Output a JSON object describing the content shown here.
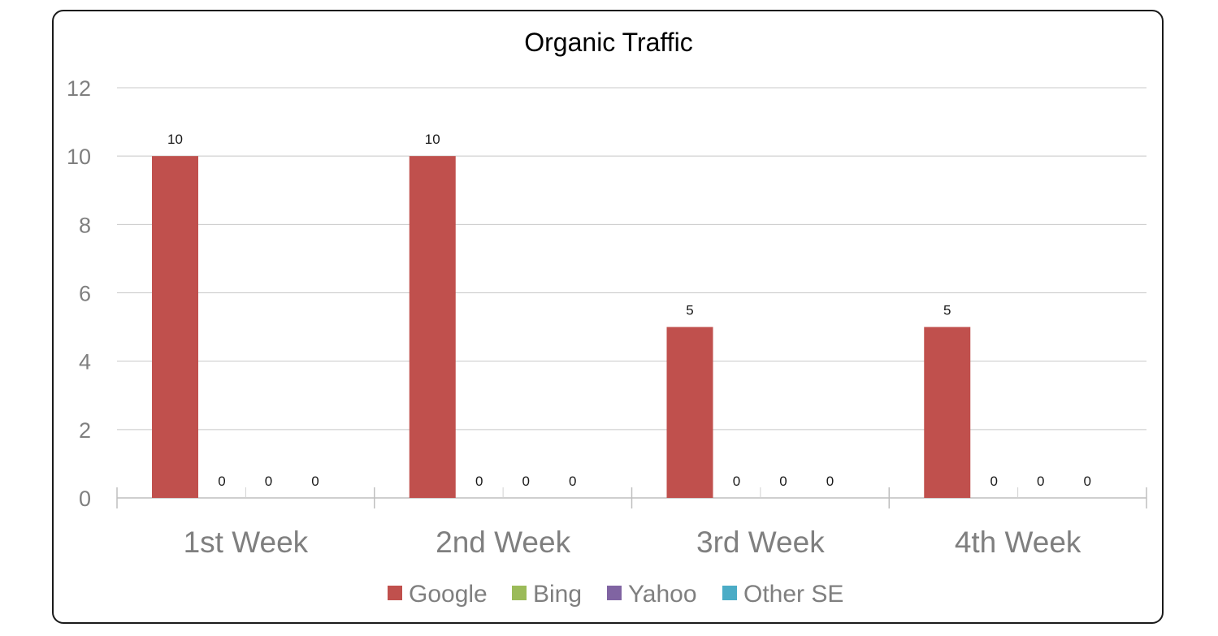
{
  "chart_data": {
    "type": "bar",
    "title": "Organic Traffic",
    "xlabel": "",
    "ylabel": "",
    "categories": [
      "1st Week",
      "2nd Week",
      "3rd Week",
      "4th Week"
    ],
    "series": [
      {
        "name": "Google",
        "values": [
          10,
          10,
          5,
          5
        ],
        "color": "#C0504D"
      },
      {
        "name": "Bing",
        "values": [
          0,
          0,
          0,
          0
        ],
        "color": "#9BBB59"
      },
      {
        "name": "Yahoo",
        "values": [
          0,
          0,
          0,
          0
        ],
        "color": "#8064A2"
      },
      {
        "name": "Other SE",
        "values": [
          0,
          0,
          0,
          0
        ],
        "color": "#4BACC6"
      }
    ],
    "ylim": [
      0,
      12
    ],
    "yticks": [
      0,
      2,
      4,
      6,
      8,
      10,
      12
    ],
    "grid": true,
    "legend": "bottom",
    "data_labels": true
  }
}
